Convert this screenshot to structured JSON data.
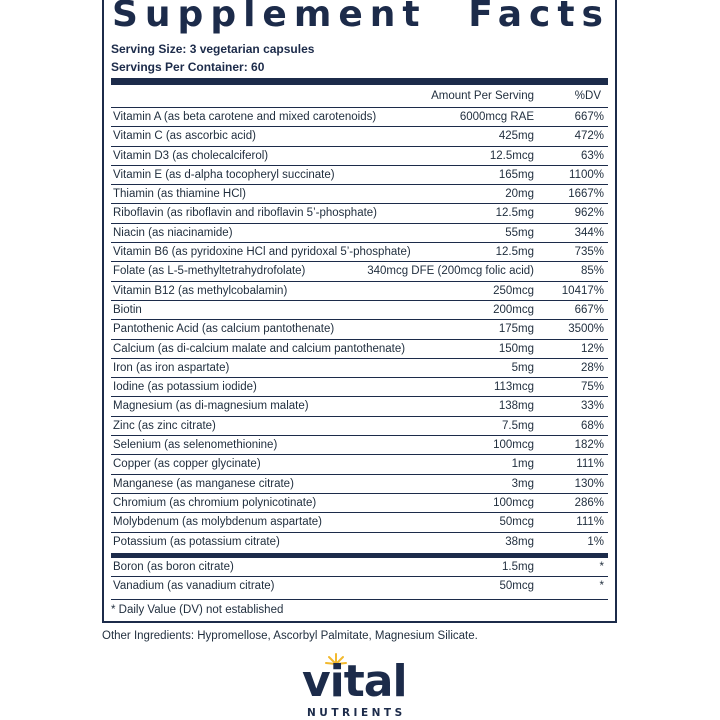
{
  "title_words": [
    "Supplement",
    "Facts"
  ],
  "serving_size": "Serving Size: 3 vegetarian capsules",
  "servings_per_container": "Servings Per Container: 60",
  "header": {
    "amount": "Amount Per Serving",
    "dv": "%DV"
  },
  "nutrients": [
    {
      "name": "Vitamin A (as beta carotene and mixed carotenoids)",
      "amount": "6000mcg RAE",
      "dv": "667%"
    },
    {
      "name": "Vitamin C (as ascorbic acid)",
      "amount": "425mg",
      "dv": "472%"
    },
    {
      "name": "Vitamin D3 (as cholecalciferol)",
      "amount": "12.5mcg",
      "dv": "63%"
    },
    {
      "name": "Vitamin E (as d-alpha tocopheryl succinate)",
      "amount": "165mg",
      "dv": "1100%"
    },
    {
      "name": "Thiamin (as thiamine HCl)",
      "amount": "20mg",
      "dv": "1667%"
    },
    {
      "name": "Riboflavin (as riboflavin and riboflavin 5’-phosphate)",
      "amount": "12.5mg",
      "dv": "962%"
    },
    {
      "name": "Niacin (as niacinamide)",
      "amount": "55mg",
      "dv": "344%"
    },
    {
      "name": "Vitamin B6 (as pyridoxine HCl and pyridoxal 5’-phosphate)",
      "amount": "12.5mg",
      "dv": "735%"
    },
    {
      "name": "Folate (as L-5-methyltetrahydrofolate)",
      "amount": "340mcg DFE (200mcg folic acid)",
      "dv": "85%"
    },
    {
      "name": "Vitamin B12 (as methylcobalamin)",
      "amount": "250mcg",
      "dv": "10417%"
    },
    {
      "name": "Biotin",
      "amount": "200mcg",
      "dv": "667%"
    },
    {
      "name": "Pantothenic Acid (as calcium pantothenate)",
      "amount": "175mg",
      "dv": "3500%"
    },
    {
      "name": "Calcium (as di-calcium malate and calcium pantothenate)",
      "amount": "150mg",
      "dv": "12%"
    },
    {
      "name": "Iron (as iron aspartate)",
      "amount": "5mg",
      "dv": "28%"
    },
    {
      "name": "Iodine (as potassium iodide)",
      "amount": "113mcg",
      "dv": "75%"
    },
    {
      "name": "Magnesium (as di-magnesium malate)",
      "amount": "138mg",
      "dv": "33%"
    },
    {
      "name": "Zinc (as zinc citrate)",
      "amount": "7.5mg",
      "dv": "68%"
    },
    {
      "name": "Selenium (as selenomethionine)",
      "amount": "100mcg",
      "dv": "182%"
    },
    {
      "name": "Copper (as copper glycinate)",
      "amount": "1mg",
      "dv": "111%"
    },
    {
      "name": "Manganese (as manganese citrate)",
      "amount": "3mg",
      "dv": "130%"
    },
    {
      "name": "Chromium (as chromium polynicotinate)",
      "amount": "100mcg",
      "dv": "286%"
    },
    {
      "name": "Molybdenum (as molybdenum aspartate)",
      "amount": "50mcg",
      "dv": "111%"
    },
    {
      "name": "Potassium (as potassium citrate)",
      "amount": "38mg",
      "dv": "1%"
    }
  ],
  "other_nutrients": [
    {
      "name": "Boron (as boron citrate)",
      "amount": "1.5mg",
      "dv": "*"
    },
    {
      "name": "Vanadium (as vanadium citrate)",
      "amount": "50mcg",
      "dv": "*"
    }
  ],
  "footnote": "* Daily Value (DV) not established",
  "other_ingredients": "Other Ingredients: Hypromellose, Ascorbyl Palmitate, Magnesium Silicate.",
  "brand": {
    "name": "vital",
    "sub": "NUTRIENTS"
  },
  "colors": {
    "navy": "#1c2b4a",
    "sun_accent": "#f2b92e"
  }
}
